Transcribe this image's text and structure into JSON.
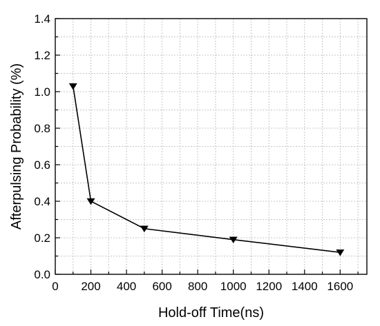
{
  "chart_data": {
    "type": "line",
    "title": "",
    "xlabel": "Hold-off Time(ns)",
    "ylabel": "Afterpulsing Probability (%)",
    "xlim": [
      0,
      1750
    ],
    "ylim": [
      0,
      1.4
    ],
    "x_ticks": [
      0,
      200,
      400,
      600,
      800,
      1000,
      1200,
      1400,
      1600
    ],
    "y_ticks": [
      0.0,
      0.2,
      0.4,
      0.6,
      0.8,
      1.0,
      1.2,
      1.4
    ],
    "x_tick_labels": [
      "0",
      "200",
      "400",
      "600",
      "800",
      "1000",
      "1200",
      "1400",
      "1600"
    ],
    "y_tick_labels": [
      "0.0",
      "0.2",
      "0.4",
      "0.6",
      "0.8",
      "1.0",
      "1.2",
      "1.4"
    ],
    "grid": true,
    "marker": "triangle-down",
    "series": [
      {
        "x": [
          100,
          200,
          500,
          1000,
          1600
        ],
        "values": [
          1.03,
          0.4,
          0.25,
          0.19,
          0.12
        ]
      }
    ],
    "colors": {
      "line": "#000000",
      "grid": "#c4c4c4",
      "background": "#ffffff"
    }
  }
}
